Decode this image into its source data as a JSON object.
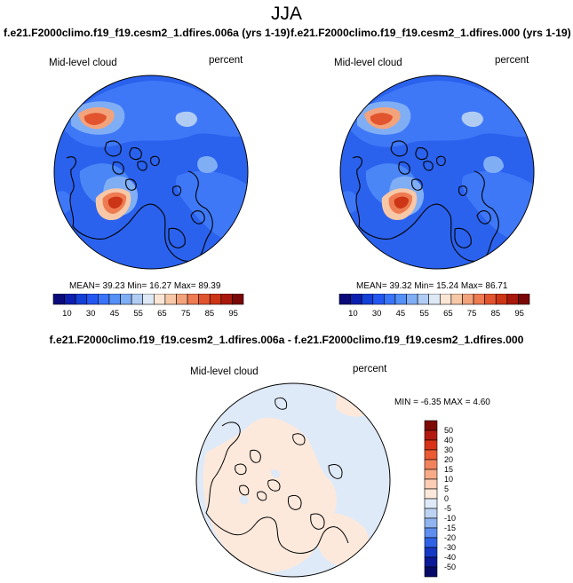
{
  "page": {
    "title": "JJA"
  },
  "panels": [
    {
      "case": "f.e21.F2000climo.f19_f19.cesm2_1.dfires.006a (yrs 1-19)",
      "variable": "Mid-level cloud",
      "units": "percent",
      "stats": {
        "mean_label": "MEAN=",
        "mean": "39.23",
        "min_label": "Min=",
        "min": "16.27",
        "max_label": "Max=",
        "max": "89.39"
      }
    },
    {
      "case": "f.e21.F2000climo.f19_f19.cesm2_1.dfires.000 (yrs 1-19)",
      "variable": "Mid-level cloud",
      "units": "percent",
      "stats": {
        "mean_label": "MEAN=",
        "mean": "39.32",
        "min_label": "Min=",
        "min": "15.24",
        "max_label": "Max=",
        "max": "86.71"
      }
    }
  ],
  "diff_panel": {
    "title": "f.e21.F2000climo.f19_f19.cesm2_1.dfires.006a - f.e21.F2000climo.f19_f19.cesm2_1.dfires.000",
    "variable": "Mid-level cloud",
    "units": "percent",
    "stats_text": "MIN =  -6.35 MAX =   4.60"
  },
  "chart_data": [
    {
      "type": "heatmap",
      "projection": "north-polar-stereographic",
      "variable": "Mid-level cloud",
      "units": "percent",
      "colorbar": {
        "orientation": "horizontal",
        "tick_labels": [
          "10",
          "30",
          "45",
          "55",
          "65",
          "75",
          "85",
          "95"
        ],
        "levels": [
          5,
          10,
          20,
          30,
          40,
          45,
          50,
          55,
          60,
          65,
          70,
          75,
          80,
          85,
          90,
          95
        ],
        "colors": [
          "#0a0a7a",
          "#0d1fb0",
          "#1540d6",
          "#2457f2",
          "#3a74f8",
          "#5590f7",
          "#80aef5",
          "#b0ccf3",
          "#dde9f5",
          "#fbe6d6",
          "#f7c8a7",
          "#f3a37c",
          "#ee7b51",
          "#e2542e",
          "#cc3515",
          "#a8180c",
          "#7a0806"
        ]
      },
      "stats": {
        "mean": 39.23,
        "min": 16.27,
        "max": 89.39
      }
    },
    {
      "type": "heatmap",
      "projection": "north-polar-stereographic",
      "variable": "Mid-level cloud",
      "units": "percent",
      "colorbar": {
        "orientation": "horizontal",
        "tick_labels": [
          "10",
          "30",
          "45",
          "55",
          "65",
          "75",
          "85",
          "95"
        ],
        "levels": [
          5,
          10,
          20,
          30,
          40,
          45,
          50,
          55,
          60,
          65,
          70,
          75,
          80,
          85,
          90,
          95
        ],
        "colors": [
          "#0a0a7a",
          "#0d1fb0",
          "#1540d6",
          "#2457f2",
          "#3a74f8",
          "#5590f7",
          "#80aef5",
          "#b0ccf3",
          "#dde9f5",
          "#fbe6d6",
          "#f7c8a7",
          "#f3a37c",
          "#ee7b51",
          "#e2542e",
          "#cc3515",
          "#a8180c",
          "#7a0806"
        ]
      },
      "stats": {
        "mean": 39.32,
        "min": 15.24,
        "max": 86.71
      }
    },
    {
      "type": "heatmap",
      "projection": "north-polar-stereographic",
      "variable": "Mid-level cloud",
      "units": "percent",
      "colorbar": {
        "orientation": "vertical",
        "tick_labels": [
          "50",
          "40",
          "30",
          "20",
          "15",
          "10",
          "5",
          "0",
          "-5",
          "-10",
          "-15",
          "-20",
          "-30",
          "-40",
          "-50"
        ],
        "colors_top_to_bottom": [
          "#7f0b06",
          "#b3190e",
          "#d83318",
          "#ea5a33",
          "#f2825c",
          "#f7aa88",
          "#fbcdb4",
          "#fde9dc",
          "#dfeaf8",
          "#bcd3f3",
          "#8fb4f0",
          "#5d8ef0",
          "#2f63e6",
          "#1539c4",
          "#0b1a96",
          "#050a66"
        ]
      },
      "stats": {
        "min": -6.35,
        "max": 4.6
      },
      "dominant_values": {
        "land": "0 to 5",
        "ocean": "-5 to 0"
      }
    }
  ]
}
